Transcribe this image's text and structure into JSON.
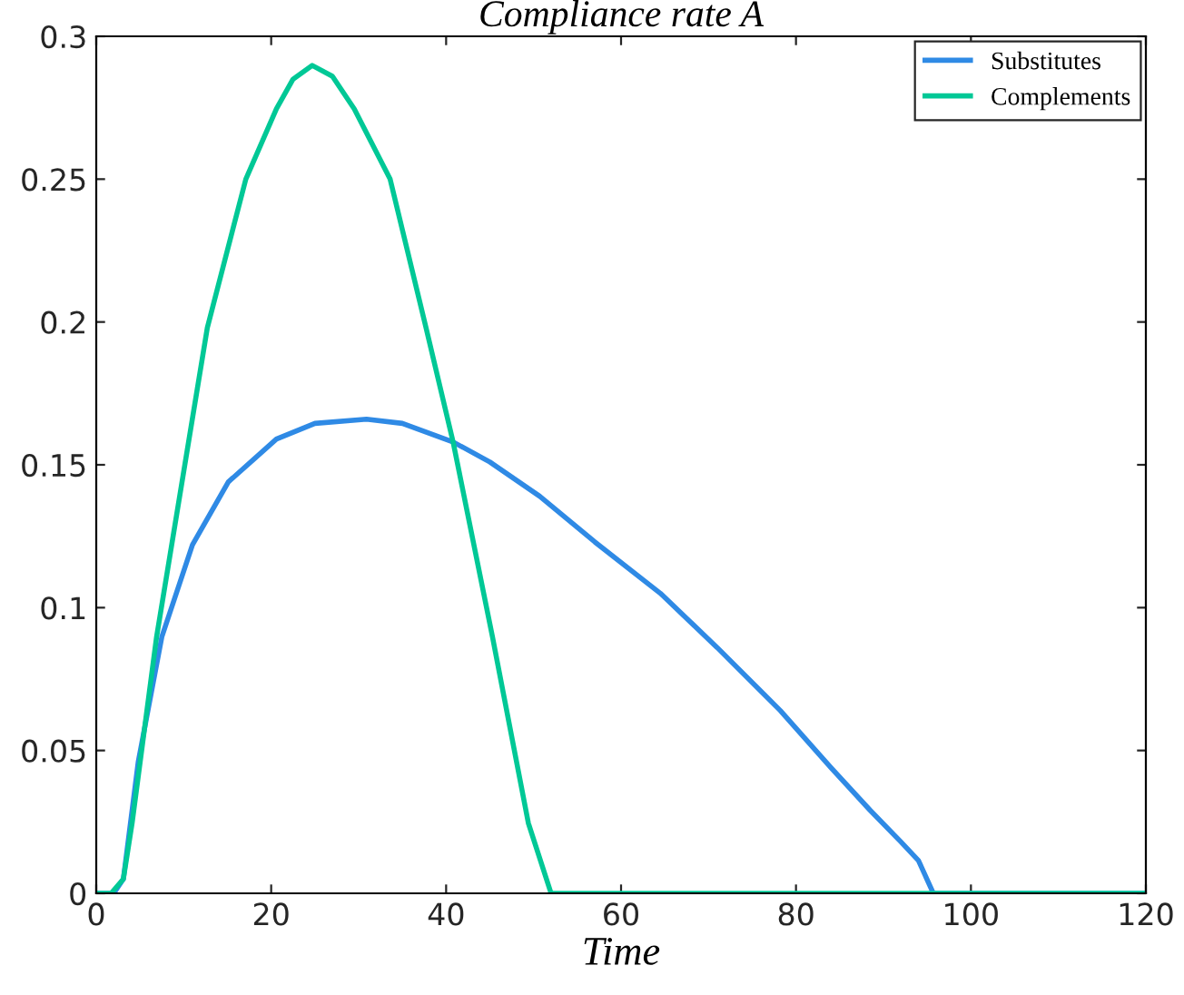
{
  "chart_data": {
    "type": "line",
    "title": "Compliance rate A",
    "xlabel": "Time",
    "xlim": [
      0,
      120
    ],
    "xticks": [
      0,
      20,
      40,
      60,
      80,
      100,
      120
    ],
    "ylim": [
      0,
      0.3
    ],
    "yticks": [
      0,
      0.05,
      0.1,
      0.15,
      0.2,
      0.25,
      0.3
    ],
    "grid": false,
    "legend": "top right",
    "marker": "none",
    "line_style": "solid",
    "series": [
      {
        "name": "Substitutes",
        "color": "#2f8ae5",
        "x": [
          0,
          2,
          3.1,
          4.8,
          7.5,
          11.0,
          15.1,
          20.6,
          25,
          30.9,
          35,
          40.8,
          45,
          50.7,
          57,
          64.5,
          71,
          78.2,
          84,
          88.5,
          92,
          94.0,
          95.7,
          100,
          120
        ],
        "values": [
          0,
          0,
          0.005,
          0.046,
          0.0898,
          0.122,
          0.144,
          0.159,
          0.1645,
          0.166,
          0.1645,
          0.158,
          0.151,
          0.139,
          0.123,
          0.105,
          0.086,
          0.064,
          0.044,
          0.029,
          0.018,
          0.0115,
          0,
          0,
          0
        ]
      },
      {
        "name": "Complements",
        "color": "#00c896",
        "x": [
          0,
          1.7,
          3.1,
          4.1,
          6.9,
          12.7,
          17.1,
          20.6,
          22.5,
          24.7,
          27,
          29.5,
          33.6,
          37.7,
          40.8,
          45.3,
          49.4,
          52.0,
          60,
          120
        ],
        "values": [
          0,
          0,
          0.005,
          0.0246,
          0.0898,
          0.198,
          0.25,
          0.2746,
          0.285,
          0.2898,
          0.286,
          0.2746,
          0.25,
          0.198,
          0.158,
          0.0898,
          0.0246,
          0,
          0,
          0
        ]
      }
    ]
  }
}
